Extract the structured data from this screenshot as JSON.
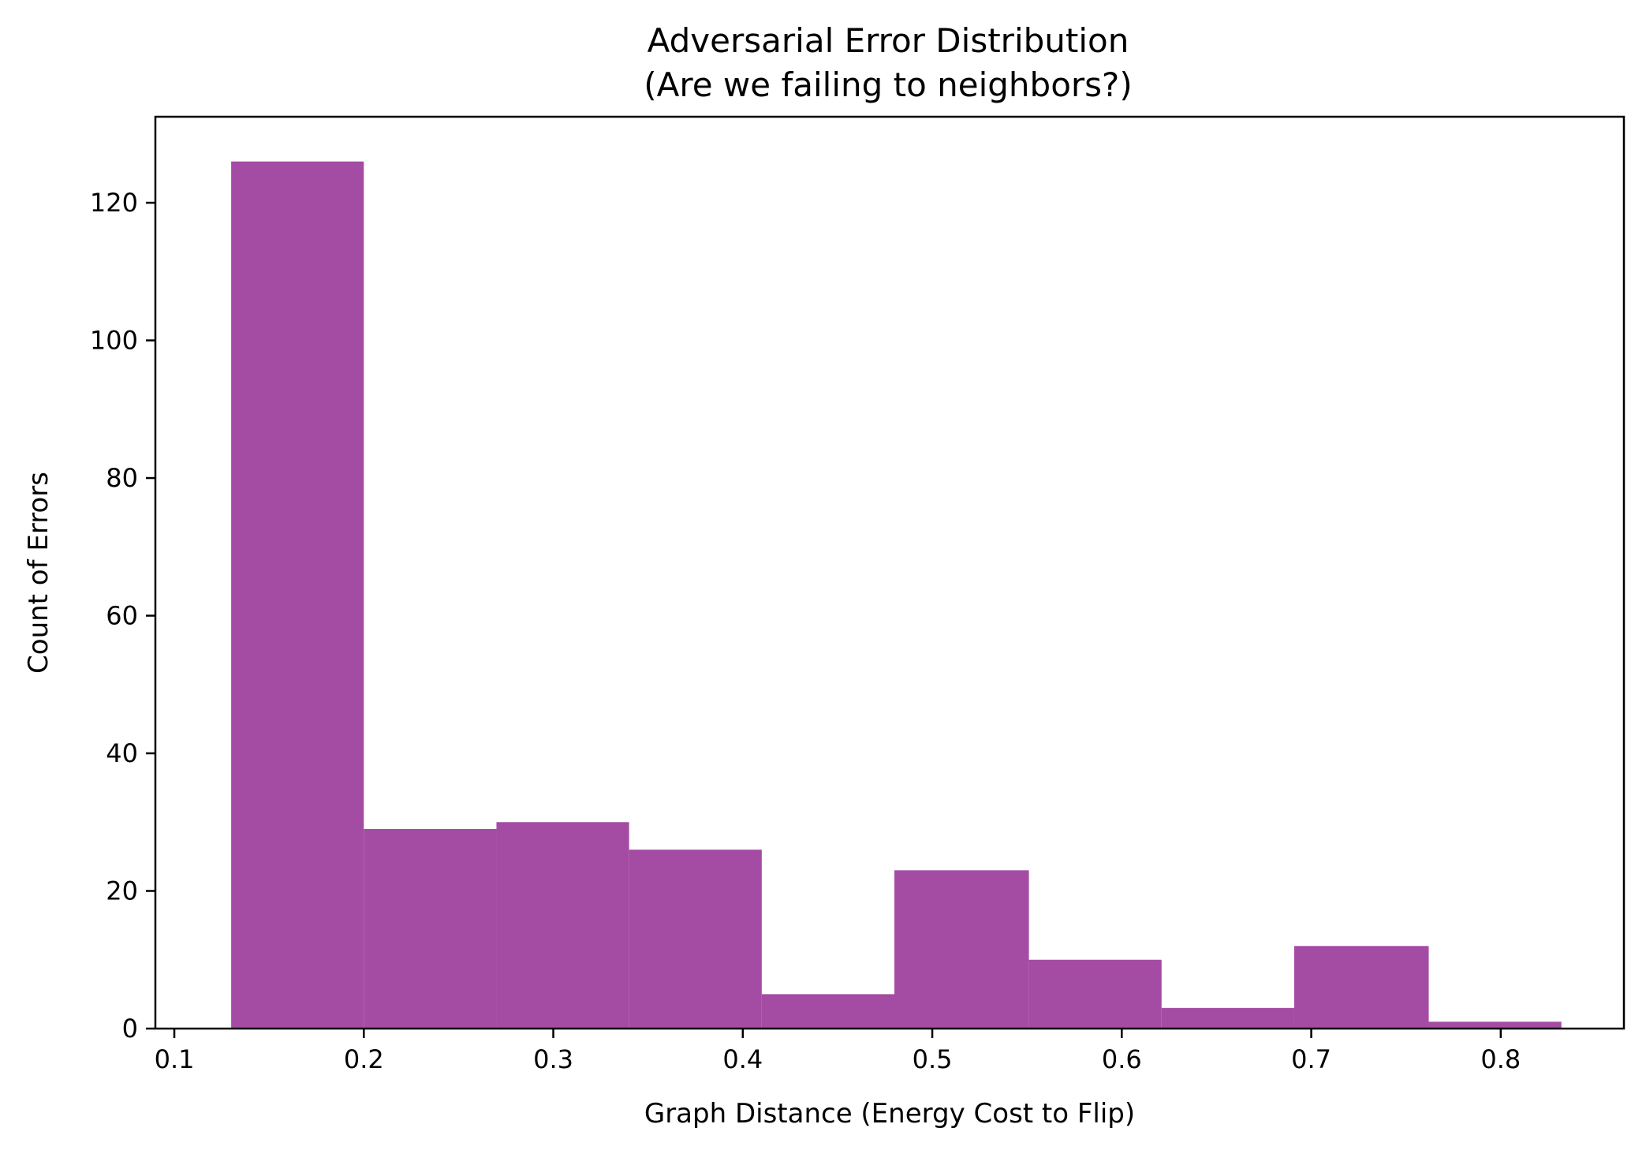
{
  "chart_data": {
    "type": "bar",
    "title": [
      "Adversarial Error Distribution",
      "(Are we failing to neighbors?)"
    ],
    "xlabel": "Graph Distance (Energy Cost to Flip)",
    "ylabel": "Count of Errors",
    "bar_color": "#a44ca4",
    "grid": false,
    "xlim": [
      0.09,
      0.865
    ],
    "ylim": [
      0,
      132.5
    ],
    "x_ticks": [
      0.1,
      0.2,
      0.3,
      0.4,
      0.5,
      0.6,
      0.7,
      0.8
    ],
    "x_tick_labels": [
      "0.1",
      "0.2",
      "0.3",
      "0.4",
      "0.5",
      "0.6",
      "0.7",
      "0.8"
    ],
    "y_ticks": [
      0,
      20,
      40,
      60,
      80,
      100,
      120
    ],
    "y_tick_labels": [
      "0",
      "20",
      "40",
      "60",
      "80",
      "100",
      "120"
    ],
    "bin_edges": [
      0.13,
      0.2,
      0.27,
      0.34,
      0.41,
      0.48,
      0.551,
      0.621,
      0.691,
      0.762,
      0.832
    ],
    "values": [
      126,
      29,
      30,
      26,
      5,
      23,
      10,
      3,
      12,
      1
    ]
  }
}
